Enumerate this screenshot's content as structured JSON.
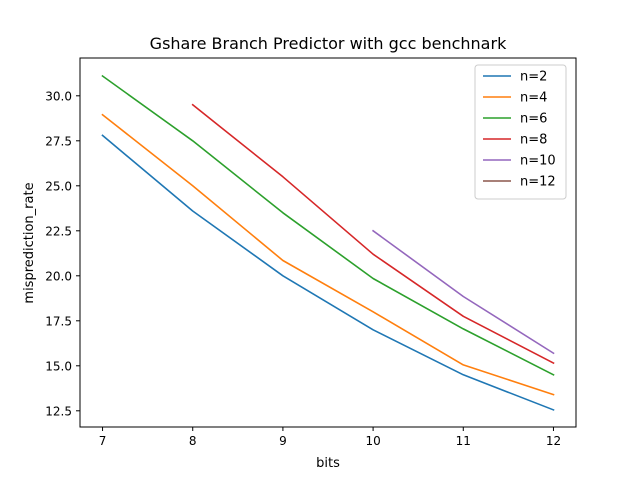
{
  "chart_data": {
    "type": "line",
    "title": "Gshare Branch Predictor with gcc benchnark",
    "xlabel": "bits",
    "ylabel": "misprediction_rate",
    "xlim": [
      6.75,
      12.25
    ],
    "ylim": [
      11.6,
      32.1
    ],
    "xticks": [
      7,
      8,
      9,
      10,
      11,
      12
    ],
    "xtick_labels": [
      "7",
      "8",
      "9",
      "10",
      "11",
      "12"
    ],
    "yticks": [
      12.5,
      15.0,
      17.5,
      20.0,
      22.5,
      25.0,
      27.5,
      30.0
    ],
    "ytick_labels": [
      "12.5",
      "15.0",
      "17.5",
      "20.0",
      "22.5",
      "25.0",
      "27.5",
      "30.0"
    ],
    "grid": false,
    "legend_position": "top-right",
    "series": [
      {
        "name": "n=2",
        "color": "#1f77b4",
        "x": [
          7,
          8,
          9,
          10,
          11,
          12
        ],
        "values": [
          27.8,
          23.6,
          20.0,
          17.0,
          14.5,
          12.55
        ]
      },
      {
        "name": "n=4",
        "color": "#ff7f0e",
        "x": [
          7,
          8,
          9,
          10,
          11,
          12
        ],
        "values": [
          28.95,
          25.0,
          20.85,
          18.0,
          15.05,
          13.4
        ]
      },
      {
        "name": "n=6",
        "color": "#2ca02c",
        "x": [
          7,
          8,
          9,
          10,
          11,
          12
        ],
        "values": [
          31.1,
          27.5,
          23.5,
          19.85,
          17.05,
          14.5
        ]
      },
      {
        "name": "n=8",
        "color": "#d62728",
        "x": [
          8,
          9,
          10,
          11,
          12
        ],
        "values": [
          29.5,
          25.5,
          21.2,
          17.75,
          15.15
        ]
      },
      {
        "name": "n=10",
        "color": "#9467bd",
        "x": [
          10,
          11,
          12
        ],
        "values": [
          22.5,
          18.85,
          15.7
        ]
      },
      {
        "name": "n=12",
        "color": "#8c564b",
        "x": [
          12
        ],
        "values": [
          15.65
        ]
      }
    ]
  }
}
